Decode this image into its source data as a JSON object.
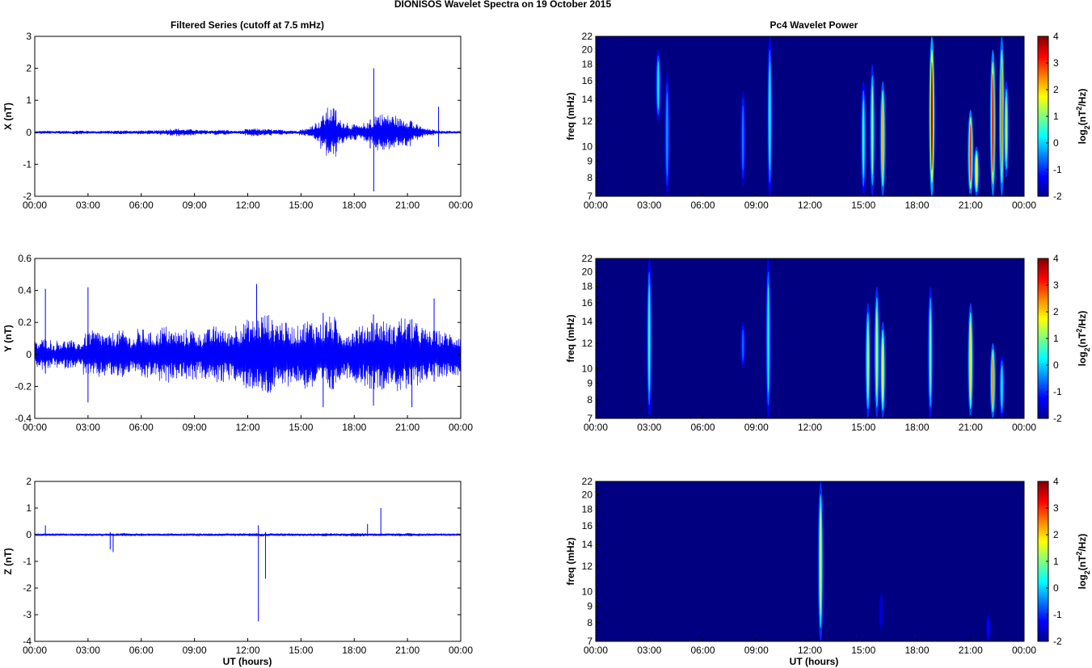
{
  "figure": {
    "title": "DIONISOS Wavelet Spectra on 19 October   2015",
    "left_title": "Filtered Series (cutoff at 7.5 mHz)",
    "right_title": "Pc4 Wavelet Power",
    "xlabel": "UT (hours)",
    "time_ticks": [
      "00:00",
      "03:00",
      "06:00",
      "09:00",
      "12:00",
      "15:00",
      "18:00",
      "21:00",
      "00:00"
    ],
    "colors": {
      "series_line": "#0000ff",
      "background": "#ffffff",
      "axis": "#000000"
    }
  },
  "chart_data": [
    {
      "type": "line",
      "component": "X",
      "ylabel": "X (nT)",
      "xlim_hours": [
        0,
        24
      ],
      "ylim": [
        -2,
        3
      ],
      "yticks": [
        -2,
        -1,
        0,
        1,
        2,
        3
      ],
      "series": [
        {
          "values_nT": [
            0.02,
            -0.03,
            0.05,
            -0.04,
            0.03,
            -0.05,
            0.04,
            -0.03,
            0.06,
            -0.05,
            0.04,
            -0.04,
            0.03,
            -0.05,
            0.05,
            -0.04,
            0.06,
            -0.06,
            0.05,
            -0.04,
            0.06,
            -0.06,
            0.05,
            -0.06,
            0.08,
            -0.09,
            0.12,
            -0.1,
            0.1,
            -0.1,
            0.07,
            -0.07,
            0.05,
            -0.06,
            0.08,
            -0.08,
            0.05,
            -0.05,
            0.04,
            -0.06,
            0.1,
            -0.12,
            0.09,
            -0.1,
            0.08,
            -0.08,
            0.06,
            -0.07,
            0.05,
            -0.05,
            0.1,
            -0.12,
            0.25,
            -0.32,
            0.55,
            -0.78,
            0.4,
            -0.35,
            0.22,
            -0.25,
            0.18,
            -0.2,
            0.3,
            -0.35,
            0.6,
            -0.55,
            0.55,
            -0.45,
            0.4,
            -0.45,
            0.25,
            -0.2,
            0.12,
            -0.1,
            0.06,
            -0.05,
            0.05,
            -0.04,
            0.04,
            -0.03
          ]
        }
      ],
      "spikes": [
        {
          "time": "19:06",
          "max": 2.0,
          "min": -1.85
        },
        {
          "time": "18:54",
          "max": 0.4,
          "min": -0.5
        },
        {
          "time": "22:45",
          "max": 0.8,
          "min": -0.45
        }
      ]
    },
    {
      "type": "line",
      "component": "Y",
      "ylabel": "Y (nT)",
      "xlim_hours": [
        0,
        24
      ],
      "ylim": [
        -0.4,
        0.6
      ],
      "yticks": [
        -0.4,
        -0.2,
        0,
        0.2,
        0.4,
        0.6
      ],
      "series": [
        {
          "values_nT": [
            0.08,
            -0.08,
            0.1,
            -0.06,
            0.07,
            -0.09,
            0.09,
            -0.08,
            0.08,
            -0.07,
            0.13,
            -0.15,
            0.14,
            -0.12,
            0.12,
            -0.14,
            0.15,
            -0.12,
            0.1,
            -0.11,
            0.16,
            -0.12,
            0.14,
            -0.13,
            0.18,
            -0.14,
            0.15,
            -0.13,
            0.14,
            -0.16,
            0.13,
            -0.12,
            0.16,
            -0.14,
            0.18,
            -0.12,
            0.14,
            -0.16,
            0.2,
            -0.18,
            0.22,
            -0.2,
            0.24,
            -0.26,
            0.22,
            -0.22,
            0.2,
            -0.18,
            0.18,
            -0.16,
            0.2,
            -0.22,
            0.18,
            -0.2,
            0.2,
            -0.24,
            0.16,
            -0.14,
            0.15,
            -0.12,
            0.18,
            -0.16,
            0.2,
            -0.22,
            0.22,
            -0.2,
            0.18,
            -0.16,
            0.24,
            -0.22,
            0.2,
            -0.18,
            0.16,
            -0.14,
            0.15,
            -0.13,
            0.14,
            -0.12,
            0.13,
            -0.1
          ]
        }
      ],
      "spikes": [
        {
          "time": "00:36",
          "max": 0.41,
          "min": -0.12
        },
        {
          "time": "03:00",
          "max": 0.42,
          "min": -0.3
        },
        {
          "time": "12:30",
          "max": 0.44,
          "min": -0.1
        },
        {
          "time": "16:15",
          "max": 0.26,
          "min": -0.33
        },
        {
          "time": "19:05",
          "max": 0.25,
          "min": -0.32
        },
        {
          "time": "21:15",
          "max": 0.22,
          "min": -0.33
        },
        {
          "time": "22:30",
          "max": 0.35,
          "min": -0.17
        }
      ]
    },
    {
      "type": "line",
      "component": "Z",
      "ylabel": "Z (nT)",
      "xlim_hours": [
        0,
        24
      ],
      "ylim": [
        -4,
        2
      ],
      "yticks": [
        -4,
        -3,
        -2,
        -1,
        0,
        1,
        2
      ],
      "series": [
        {
          "values_nT": [
            0.03,
            -0.03,
            0.04,
            -0.03,
            0.03,
            -0.04,
            0.03,
            -0.03,
            0.04,
            -0.04,
            0.03,
            -0.03,
            0.03,
            -0.03,
            0.04,
            -0.04,
            0.05,
            -0.06,
            0.04,
            -0.05,
            0.03,
            -0.03,
            0.04,
            -0.04,
            0.03,
            -0.03,
            0.04,
            -0.03,
            0.03,
            -0.04,
            0.04,
            -0.03,
            0.05,
            -0.04,
            0.04,
            -0.05,
            0.04,
            -0.03,
            0.05,
            -0.05,
            0.06,
            -0.06,
            0.05,
            -0.06,
            0.04,
            -0.04,
            0.05,
            -0.05,
            0.04,
            -0.04,
            0.05,
            -0.05,
            0.04,
            -0.04,
            0.06,
            -0.05,
            0.05,
            -0.05,
            0.06,
            -0.06,
            0.07,
            -0.05,
            0.05,
            -0.05,
            0.04,
            -0.04,
            0.05,
            -0.05,
            0.06,
            -0.06,
            0.05,
            -0.05,
            0.04,
            -0.04,
            0.04,
            -0.04,
            0.03,
            -0.03,
            0.03,
            -0.03
          ]
        }
      ],
      "spikes": [
        {
          "time": "00:36",
          "max": 0.35,
          "min": -0.05
        },
        {
          "time": "04:15",
          "max": 0.1,
          "min": -0.55
        },
        {
          "time": "04:25",
          "max": 0.05,
          "min": -0.65
        },
        {
          "time": "12:36",
          "max": 0.35,
          "min": -3.25
        },
        {
          "time": "13:00",
          "max": 0.1,
          "min": -1.65
        },
        {
          "time": "18:45",
          "max": 0.4,
          "min": -0.05
        },
        {
          "time": "19:30",
          "max": 1.0,
          "min": -0.05
        }
      ]
    },
    {
      "type": "heatmap",
      "component": "X",
      "title": "Pc4 Wavelet Power",
      "ylabel": "freq (mHz)",
      "yticks": [
        7,
        8,
        9,
        10,
        12,
        14,
        16,
        18,
        20,
        22
      ],
      "ylim_mHz": [
        7,
        22
      ],
      "xlim_hours": [
        0,
        24
      ],
      "colorbar_label": "log2(nT2/Hz)",
      "clim": [
        -2,
        4
      ],
      "colorbar_ticks": [
        -2,
        -1,
        0,
        1,
        2,
        3,
        4
      ],
      "background_level": -2,
      "streaks": [
        {
          "time": "03:30",
          "f_low": 12,
          "f_high": 20,
          "level": 0.2
        },
        {
          "time": "04:00",
          "f_low": 7,
          "f_high": 17,
          "level": -0.3
        },
        {
          "time": "08:15",
          "f_low": 7.5,
          "f_high": 15,
          "level": -0.5
        },
        {
          "time": "09:45",
          "f_low": 7,
          "f_high": 22,
          "level": 0.4
        },
        {
          "time": "15:00",
          "f_low": 7,
          "f_high": 16,
          "level": 0.5
        },
        {
          "time": "15:30",
          "f_low": 7,
          "f_high": 18,
          "level": 1.0
        },
        {
          "time": "16:05",
          "f_low": 7,
          "f_high": 16,
          "level": 2.2
        },
        {
          "time": "18:50",
          "f_low": 7,
          "f_high": 22,
          "level": 3.8
        },
        {
          "time": "21:00",
          "f_low": 7,
          "f_high": 13,
          "level": 3.0
        },
        {
          "time": "21:20",
          "f_low": 7,
          "f_high": 10,
          "level": 1.8
        },
        {
          "time": "22:15",
          "f_low": 7,
          "f_high": 20,
          "level": 3.2
        },
        {
          "time": "22:45",
          "f_low": 7,
          "f_high": 22,
          "level": 2.6
        },
        {
          "time": "23:00",
          "f_low": 8,
          "f_high": 16,
          "level": 1.2
        }
      ]
    },
    {
      "type": "heatmap",
      "component": "Y",
      "ylabel": "freq (mHz)",
      "yticks": [
        7,
        8,
        9,
        10,
        12,
        14,
        16,
        18,
        20,
        22
      ],
      "ylim_mHz": [
        7,
        22
      ],
      "xlim_hours": [
        0,
        24
      ],
      "colorbar_label": "log2(nT2/Hz)",
      "clim": [
        -2,
        4
      ],
      "colorbar_ticks": [
        -2,
        -1,
        0,
        1,
        2,
        3,
        4
      ],
      "background_level": -2,
      "streaks": [
        {
          "time": "03:00",
          "f_low": 7,
          "f_high": 22,
          "level": 0.5
        },
        {
          "time": "08:15",
          "f_low": 10,
          "f_high": 14,
          "level": -0.6
        },
        {
          "time": "09:40",
          "f_low": 7,
          "f_high": 22,
          "level": 0.3
        },
        {
          "time": "15:15",
          "f_low": 7,
          "f_high": 16,
          "level": 1.2
        },
        {
          "time": "15:45",
          "f_low": 7,
          "f_high": 18,
          "level": 1.3
        },
        {
          "time": "16:05",
          "f_low": 7,
          "f_high": 14,
          "level": 1.6
        },
        {
          "time": "18:45",
          "f_low": 7,
          "f_high": 18,
          "level": 0.8
        },
        {
          "time": "21:00",
          "f_low": 7,
          "f_high": 16,
          "level": 1.9
        },
        {
          "time": "22:15",
          "f_low": 7,
          "f_high": 12,
          "level": 2.4
        },
        {
          "time": "22:45",
          "f_low": 7,
          "f_high": 11,
          "level": 0.3
        }
      ]
    },
    {
      "type": "heatmap",
      "component": "Z",
      "ylabel": "freq (mHz)",
      "yticks": [
        7,
        8,
        9,
        10,
        12,
        14,
        16,
        18,
        20,
        22
      ],
      "ylim_mHz": [
        7,
        22
      ],
      "xlim_hours": [
        0,
        24
      ],
      "colorbar_label": "log2(nT2/Hz)",
      "clim": [
        -2,
        4
      ],
      "colorbar_ticks": [
        -2,
        -1,
        0,
        1,
        2,
        3,
        4
      ],
      "background_level": -2,
      "streaks": [
        {
          "time": "12:36",
          "f_low": 7,
          "f_high": 22,
          "level": 1.4
        },
        {
          "time": "16:00",
          "f_low": 7.5,
          "f_high": 10,
          "level": -1.4
        },
        {
          "time": "22:00",
          "f_low": 7,
          "f_high": 8.5,
          "level": -1.2
        }
      ]
    }
  ]
}
